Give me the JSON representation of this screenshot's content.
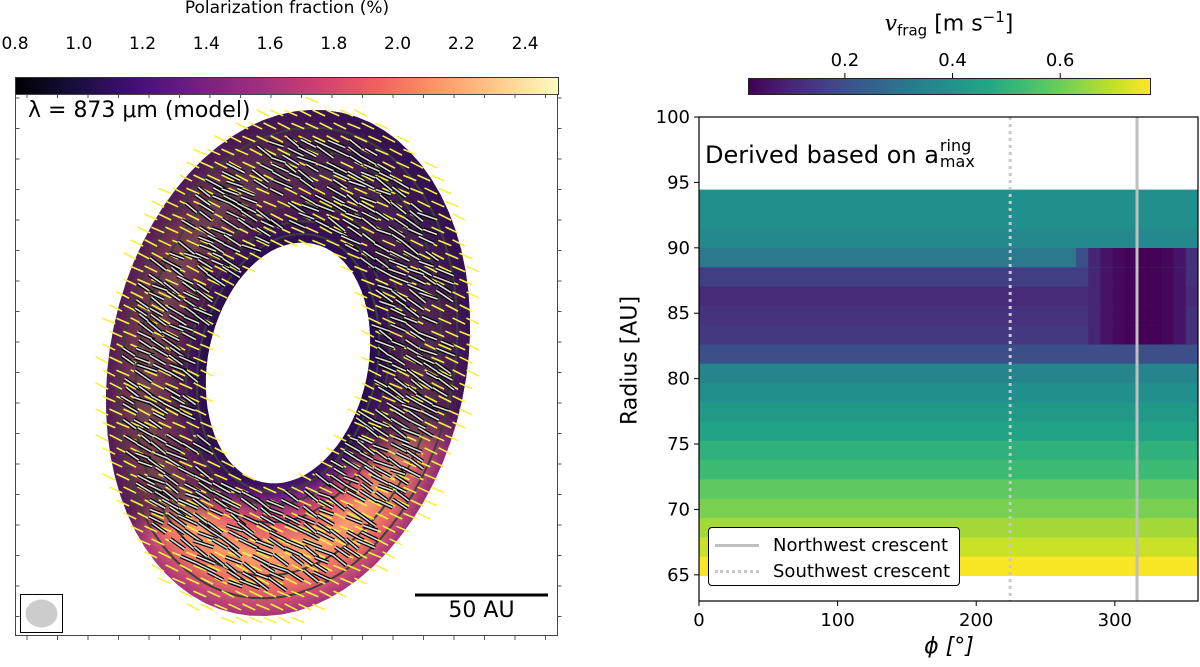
{
  "chart_data": [
    {
      "type": "heatmap",
      "panel": "left",
      "description_text": "λ = 873 μm (model)",
      "colorbar": {
        "label": "Polarization fraction (%)",
        "colormap": "magma",
        "range": [
          0.8,
          2.5
        ],
        "ticks": [
          "0.8",
          "1.0",
          "1.2",
          "1.4",
          "1.6",
          "1.8",
          "2.0",
          "2.2",
          "2.4"
        ],
        "location": "top"
      },
      "scale_bar": "50 AU",
      "beam": "gray ellipse, bottom-left",
      "overlays": [
        "polarization vectors (yellow)",
        "polarization vectors (black, white outline)",
        "contours (dark gray)"
      ]
    },
    {
      "type": "heatmap",
      "panel": "right",
      "xlabel": "ϕ [°]",
      "ylabel": "Radius [AU]",
      "xlim": [
        0,
        360
      ],
      "ylim": [
        63,
        100
      ],
      "xticks": [
        "0",
        "100",
        "200",
        "300"
      ],
      "yticks": [
        "65",
        "70",
        "75",
        "80",
        "85",
        "90",
        "95",
        "100"
      ],
      "annotation": {
        "main": "Derived based on a",
        "sup": "ring",
        "sub": "max"
      },
      "colorbar": {
        "label_main": "v",
        "label_sub": "frag",
        "label_unit": " [m s",
        "label_sup": "−1",
        "label_end": "]",
        "colormap": "viridis",
        "range": [
          0.02,
          0.765
        ],
        "ticks": [
          "0.2",
          "0.4",
          "0.6"
        ],
        "location": "top"
      },
      "radius_bands": {
        "r_start": 64.95,
        "r_step": 1.475,
        "values_from_inner": [
          0.76,
          0.705,
          0.66,
          0.616,
          0.579,
          0.527,
          0.497,
          0.452,
          0.42,
          0.39,
          0.355,
          0.2,
          0.14,
          0.13,
          0.11,
          0.155,
          0.32,
          0.37,
          0.39,
          0.39
        ]
      },
      "crescent_region": {
        "phi_range": [
          272,
          360
        ],
        "r_range": [
          82.65,
          90.03
        ],
        "values_by_phi": [
          0.2,
          0.1,
          0.06,
          0.04,
          0.025,
          0.02,
          0.025,
          0.035,
          0.06,
          0.12
        ]
      },
      "vertical_lines": [
        {
          "name": "Northwest crescent",
          "phi": 316,
          "style": "solid",
          "color": "#c0c0c0"
        },
        {
          "name": "Southwest crescent",
          "phi": 224.5,
          "style": "dotted",
          "color": "#c8c8c8"
        }
      ],
      "legend_placement": "lower-left"
    }
  ]
}
